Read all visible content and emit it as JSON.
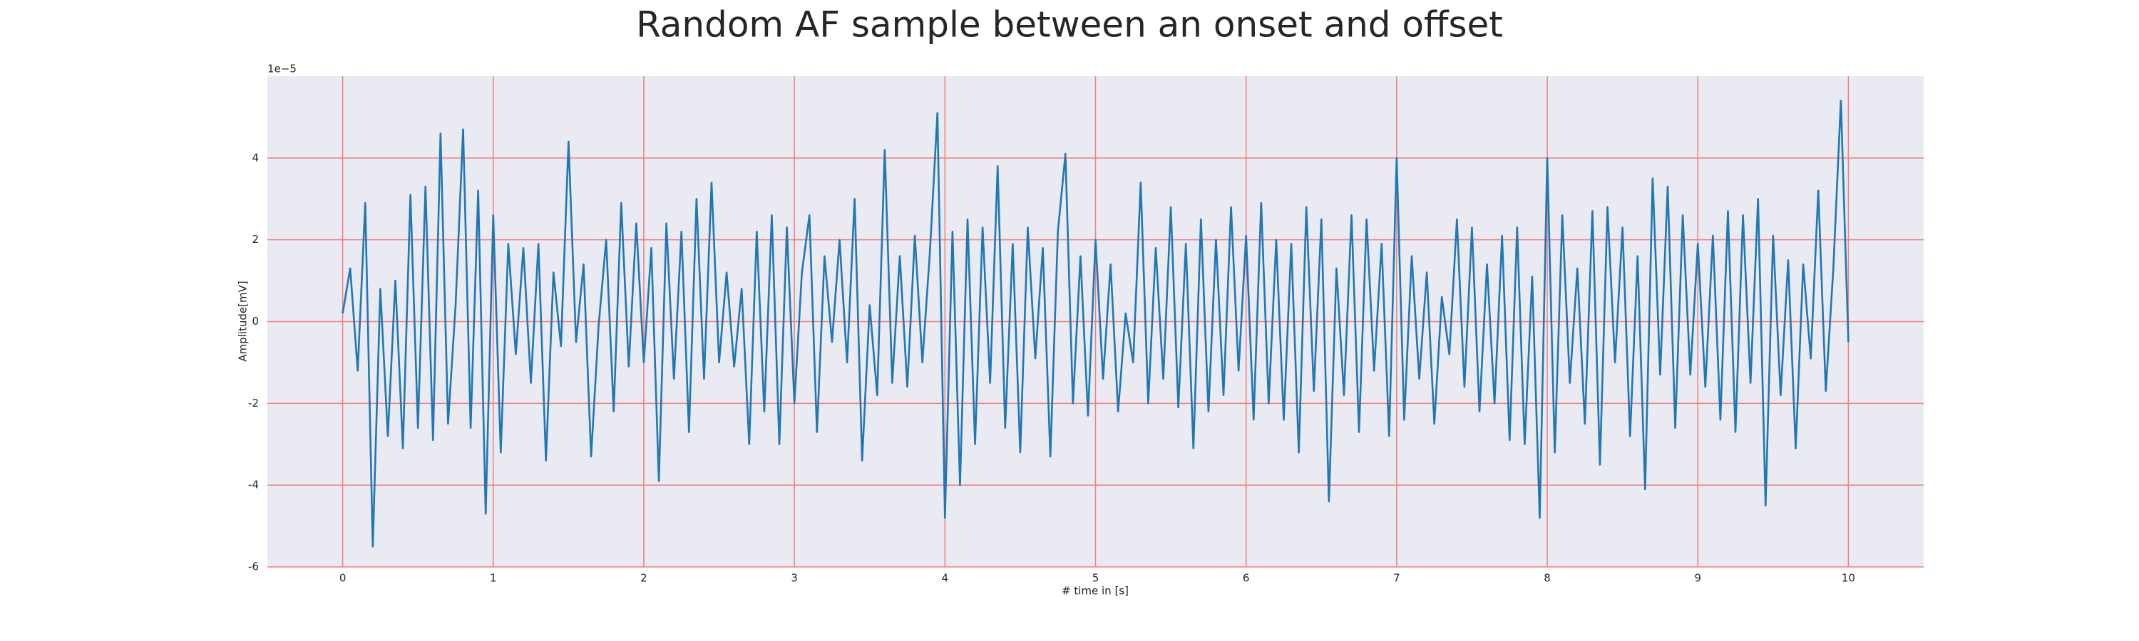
{
  "chart_data": {
    "type": "line",
    "title": "Random AF sample between an onset and offset",
    "xlabel": "# time in [s]",
    "ylabel": "Amplitude[mV]",
    "y_offset_label": "1e−5",
    "xlim": [
      -0.5,
      10.5
    ],
    "ylim": [
      -6,
      6
    ],
    "xticks": [
      0,
      1,
      2,
      3,
      4,
      5,
      6,
      7,
      8,
      9,
      10
    ],
    "yticks": [
      -6,
      -4,
      -2,
      0,
      2,
      4
    ],
    "grid": true,
    "grid_color": "#ef7f7f",
    "background": "#eaeaf2",
    "x": [
      0,
      0.05,
      0.1,
      0.15,
      0.2,
      0.25,
      0.3,
      0.35,
      0.4,
      0.45,
      0.5,
      0.55,
      0.6,
      0.65,
      0.7,
      0.75,
      0.8,
      0.85,
      0.9,
      0.95,
      1,
      1.05,
      1.1,
      1.15,
      1.2,
      1.25,
      1.3,
      1.35,
      1.4,
      1.45,
      1.5,
      1.55,
      1.6,
      1.65,
      1.7,
      1.75,
      1.8,
      1.85,
      1.9,
      1.95,
      2,
      2.05,
      2.1,
      2.15,
      2.2,
      2.25,
      2.3,
      2.35,
      2.4,
      2.45,
      2.5,
      2.55,
      2.6,
      2.65,
      2.7,
      2.75,
      2.8,
      2.85,
      2.9,
      2.95,
      3,
      3.05,
      3.1,
      3.15,
      3.2,
      3.25,
      3.3,
      3.35,
      3.4,
      3.45,
      3.5,
      3.55,
      3.6,
      3.65,
      3.7,
      3.75,
      3.8,
      3.85,
      3.9,
      3.95,
      4,
      4.05,
      4.1,
      4.15,
      4.2,
      4.25,
      4.3,
      4.35,
      4.4,
      4.45,
      4.5,
      4.55,
      4.6,
      4.65,
      4.7,
      4.75,
      4.8,
      4.85,
      4.9,
      4.95,
      5,
      5.05,
      5.1,
      5.15,
      5.2,
      5.25,
      5.3,
      5.35,
      5.4,
      5.45,
      5.5,
      5.55,
      5.6,
      5.65,
      5.7,
      5.75,
      5.8,
      5.85,
      5.9,
      5.95,
      6,
      6.05,
      6.1,
      6.15,
      6.2,
      6.25,
      6.3,
      6.35,
      6.4,
      6.45,
      6.5,
      6.55,
      6.6,
      6.65,
      6.7,
      6.75,
      6.8,
      6.85,
      6.9,
      6.95,
      7,
      7.05,
      7.1,
      7.15,
      7.2,
      7.25,
      7.3,
      7.35,
      7.4,
      7.45,
      7.5,
      7.55,
      7.6,
      7.65,
      7.7,
      7.75,
      7.8,
      7.85,
      7.9,
      7.95,
      8,
      8.05,
      8.1,
      8.15,
      8.2,
      8.25,
      8.3,
      8.35,
      8.4,
      8.45,
      8.5,
      8.55,
      8.6,
      8.65,
      8.7,
      8.75,
      8.8,
      8.85,
      8.9,
      8.95,
      9,
      9.05,
      9.1,
      9.15,
      9.2,
      9.25,
      9.3,
      9.35,
      9.4,
      9.45,
      9.5,
      9.55,
      9.6,
      9.65,
      9.7,
      9.75,
      9.8,
      9.85,
      9.9,
      9.95,
      10
    ],
    "series": [
      {
        "color": "#1f77b4",
        "values": [
          0.2,
          1.3,
          -1.2,
          2.9,
          -5.5,
          0.8,
          -2.8,
          1.0,
          -3.1,
          3.1,
          -2.6,
          3.3,
          -2.9,
          4.6,
          -2.5,
          0.4,
          4.7,
          -2.6,
          3.2,
          -4.7,
          2.6,
          -3.2,
          1.9,
          -0.8,
          1.8,
          -1.5,
          1.9,
          -3.4,
          1.2,
          -0.6,
          4.4,
          -0.5,
          1.4,
          -3.3,
          -0.1,
          2.0,
          -2.2,
          2.9,
          -1.1,
          2.4,
          -1.0,
          1.8,
          -3.9,
          2.4,
          -1.4,
          2.2,
          -2.7,
          3.0,
          -1.4,
          3.4,
          -1.0,
          1.2,
          -1.1,
          0.8,
          -3.0,
          2.2,
          -2.2,
          2.6,
          -3.0,
          2.3,
          -2.0,
          1.2,
          2.6,
          -2.7,
          1.6,
          -0.5,
          2.0,
          -1.0,
          3.0,
          -3.4,
          0.4,
          -1.8,
          4.2,
          -1.5,
          1.6,
          -1.6,
          2.1,
          -1.0,
          1.7,
          5.1,
          -4.8,
          2.2,
          -4.0,
          2.5,
          -3.0,
          2.3,
          -1.5,
          3.8,
          -2.6,
          1.9,
          -3.2,
          2.3,
          -0.9,
          1.8,
          -3.3,
          2.2,
          4.1,
          -2.0,
          1.6,
          -2.3,
          2.0,
          -1.4,
          1.4,
          -2.2,
          0.2,
          -1.0,
          3.4,
          -2.0,
          1.8,
          -1.4,
          2.8,
          -2.1,
          1.9,
          -3.1,
          2.5,
          -2.2,
          2.0,
          -1.8,
          2.8,
          -1.2,
          2.1,
          -2.4,
          2.9,
          -2.0,
          2.0,
          -2.4,
          1.9,
          -3.2,
          2.8,
          -1.7,
          2.5,
          -4.4,
          1.3,
          -1.8,
          2.6,
          -2.7,
          2.5,
          -1.2,
          1.9,
          -2.8,
          4.0,
          -2.4,
          1.6,
          -1.4,
          1.2,
          -2.5,
          0.6,
          -0.8,
          2.5,
          -1.6,
          2.3,
          -2.2,
          1.4,
          -2.0,
          2.1,
          -2.9,
          2.3,
          -3.0,
          1.1,
          -4.8,
          4.0,
          -3.2,
          2.6,
          -1.5,
          1.3,
          -2.5,
          2.7,
          -3.5,
          2.8,
          -1.0,
          2.3,
          -2.8,
          1.6,
          -4.1,
          3.5,
          -1.3,
          3.3,
          -2.6,
          2.6,
          -1.3,
          1.9,
          -1.6,
          2.1,
          -2.4,
          2.7,
          -2.7,
          2.6,
          -1.5,
          3.0,
          -4.5,
          2.1,
          -1.8,
          1.5,
          -3.1,
          1.4,
          -0.9,
          3.2,
          -1.7,
          1.3,
          5.4,
          -0.5
        ]
      }
    ]
  }
}
